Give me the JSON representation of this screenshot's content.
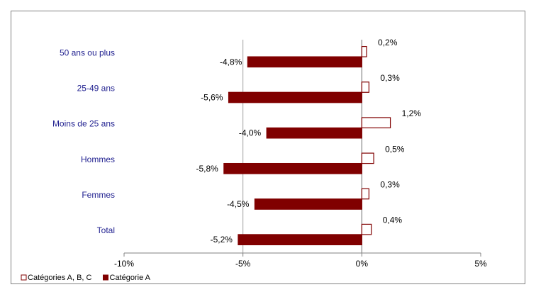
{
  "chart_data": {
    "type": "bar",
    "orientation": "horizontal",
    "categories": [
      "50 ans ou plus",
      "25-49 ans",
      "Moins de 25 ans",
      "Hommes",
      "Femmes",
      "Total"
    ],
    "series": [
      {
        "name": "Catégories A, B, C",
        "color": "#800000",
        "fill": "#ffffff",
        "values": [
          0.2,
          0.3,
          1.2,
          0.5,
          0.3,
          0.4
        ],
        "value_labels": [
          "0,2%",
          "0,3%",
          "1,2%",
          "0,5%",
          "0,3%",
          "0,4%"
        ]
      },
      {
        "name": "Catégorie A",
        "color": "#800000",
        "fill": "#800000",
        "values": [
          -4.8,
          -5.6,
          -4.0,
          -5.8,
          -4.5,
          -5.2
        ],
        "value_labels": [
          "-4,8%",
          "-5,6%",
          "-4,0%",
          "-5,8%",
          "-4,5%",
          "-5,2%"
        ]
      }
    ],
    "xlim": [
      -10,
      5
    ],
    "xticks": [
      {
        "value": -10,
        "label": "-10%"
      },
      {
        "value": -5,
        "label": "-5%"
      },
      {
        "value": 0,
        "label": "0%"
      },
      {
        "value": 5,
        "label": "5%"
      }
    ],
    "grid": true,
    "legend": "bottom-left"
  }
}
